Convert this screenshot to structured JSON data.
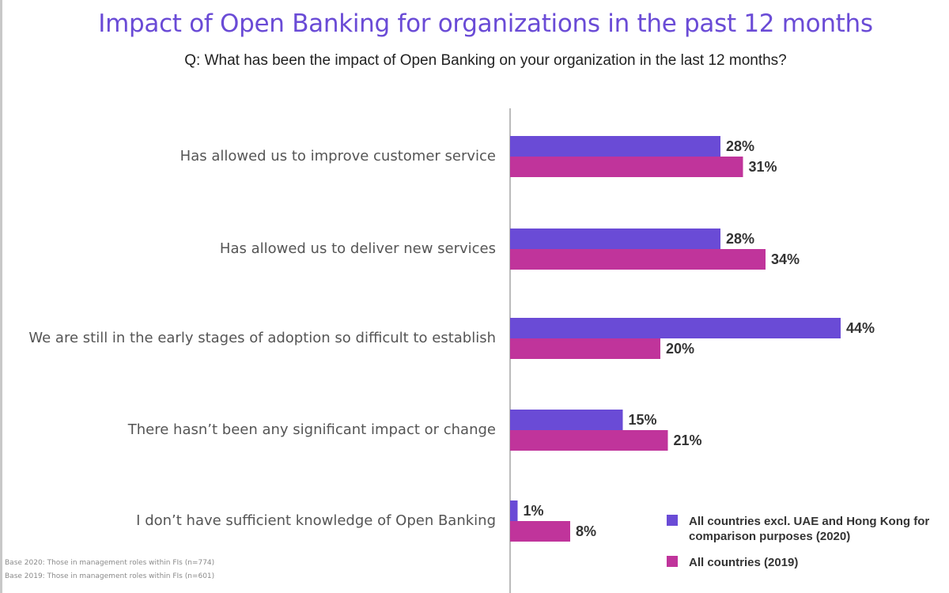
{
  "chart_data": {
    "type": "bar",
    "orientation": "horizontal",
    "title": "Impact of Open Banking for organizations in the past 12 months",
    "subtitle": "Q: What has been the impact of Open Banking on your organization in the last 12 months?",
    "categories": [
      "Has allowed us to improve customer service",
      "Has allowed us to deliver new services",
      "We are still in the early stages of adoption so difficult to establish",
      "There hasn’t been any significant impact or change",
      "I don’t have sufficient knowledge of Open Banking"
    ],
    "series": [
      {
        "name": "All countries excl. UAE and Hong Kong for comparison purposes (2020)",
        "legend_lines": [
          "All countries excl. UAE and Hong Kong for",
          "comparison purposes (2020)"
        ],
        "color": "#6a4bd6",
        "values": [
          28,
          28,
          44,
          15,
          1
        ],
        "labels": [
          "28%",
          "28%",
          "44%",
          "15%",
          "1%"
        ]
      },
      {
        "name": "All countries (2019)",
        "legend_lines": [
          "All countries (2019)"
        ],
        "color": "#c0349b",
        "values": [
          31,
          34,
          20,
          21,
          8
        ],
        "labels": [
          "31%",
          "34%",
          "20%",
          "21%",
          "8%"
        ]
      }
    ],
    "unit": "%",
    "legend_position": "bottom-right",
    "grid": false
  },
  "footnotes": [
    "Base 2020: Those in management roles within FIs (n=774)",
    "Base 2019: Those in management roles within FIs (n=601)"
  ],
  "colors": {
    "title": "#6a4bd6",
    "axis": "#bbbbbb"
  }
}
